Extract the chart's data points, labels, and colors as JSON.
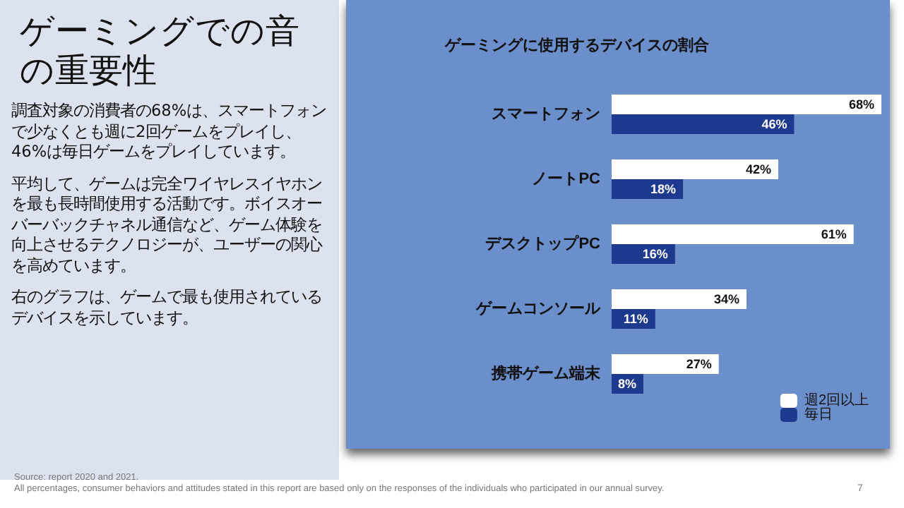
{
  "chart_data": {
    "type": "bar",
    "orientation": "horizontal",
    "title": "ゲーミングでの音の重要性",
    "subtitle": "ゲーミングに使用するデバイスの割合",
    "categories": [
      "スマートフォン",
      "ノートPC",
      "デスクトップPC",
      "ゲームコンソール",
      "携帯ゲーム端末"
    ],
    "series": [
      {
        "name": "週2回以上",
        "color": "#ffffff",
        "values": [
          68,
          42,
          61,
          34,
          27
        ],
        "value_labels": [
          "68%",
          "42%",
          "61%",
          "34%",
          "27%"
        ]
      },
      {
        "name": "毎日",
        "color": "#1e3a8f",
        "values": [
          46,
          18,
          16,
          11,
          8
        ],
        "value_labels": [
          "46%",
          "18%",
          "16%",
          "11%",
          "8%"
        ]
      }
    ],
    "legend": "bottom right",
    "annotations": [
      "調査対象の消費者の68%は、スマートフォンで少なくとも週に2回ゲームをプレイし、46%は毎日ゲームをプレイしています。",
      "平均して、ゲームは完全ワイヤレスイヤホンを最も長時間使用する活動です。ボイスオーバーバックチャネル通信など、ゲーム体験を向上させるテクノロジーが、ユーザーの関心を高めています。",
      "右のグラフは、ゲームで最も使用されているデバイスを示しています。",
      "Source: report 2020 and 2021.",
      "All percentages, consumer behaviors and attitudes stated in this report are based only on the responses of the individuals who participated in our annual survey.",
      "7"
    ]
  }
}
